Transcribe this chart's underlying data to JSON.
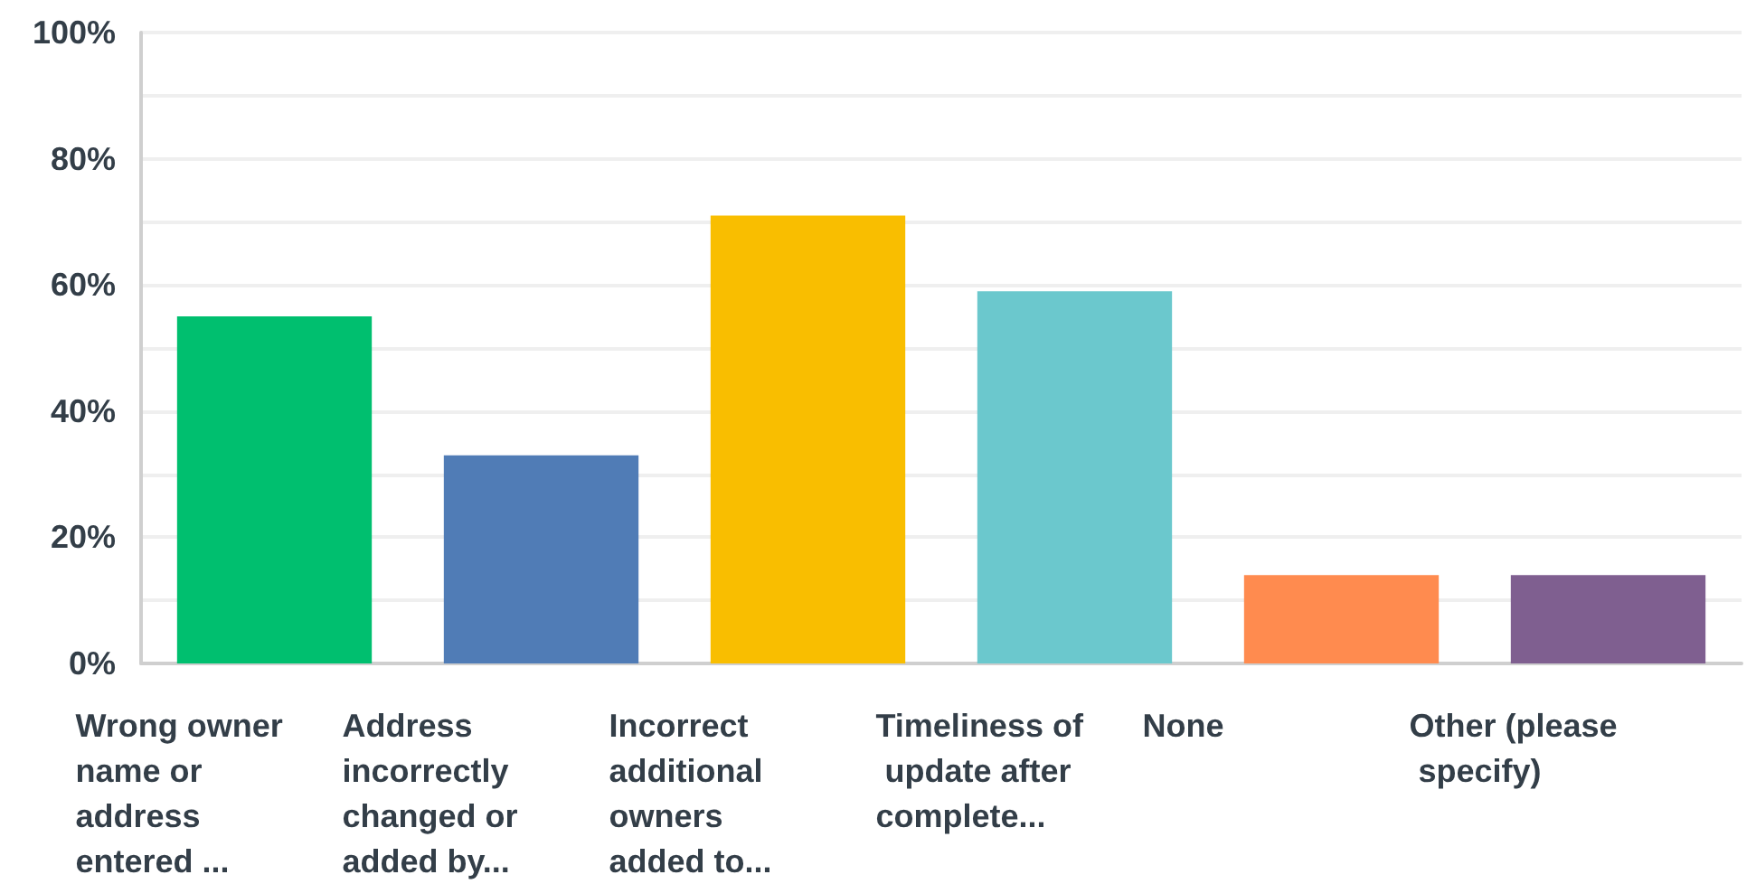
{
  "chart_data": {
    "type": "bar",
    "categories": [
      "Wrong owner name or address entered ...",
      "Address incorrectly changed or added by...",
      "Incorrect additional owners added to...",
      "Timeliness of update after complete...",
      "None",
      "Other (please specify)"
    ],
    "values": [
      55,
      33,
      71,
      59,
      14,
      14
    ],
    "colors": [
      "#00bf6f",
      "#507cb6",
      "#f9be00",
      "#6bc8cd",
      "#ff8b4f",
      "#7f5f90"
    ],
    "ylim": [
      0,
      100
    ],
    "yticks": [
      {
        "value": 0,
        "label": "0%"
      },
      {
        "value": 10,
        "label": null
      },
      {
        "value": 20,
        "label": "20%"
      },
      {
        "value": 30,
        "label": null
      },
      {
        "value": 40,
        "label": "40%"
      },
      {
        "value": 50,
        "label": null
      },
      {
        "value": 60,
        "label": "60%"
      },
      {
        "value": 70,
        "label": null
      },
      {
        "value": 80,
        "label": "80%"
      },
      {
        "value": 90,
        "label": null
      },
      {
        "value": 100,
        "label": "100%"
      }
    ],
    "grid": "y"
  }
}
